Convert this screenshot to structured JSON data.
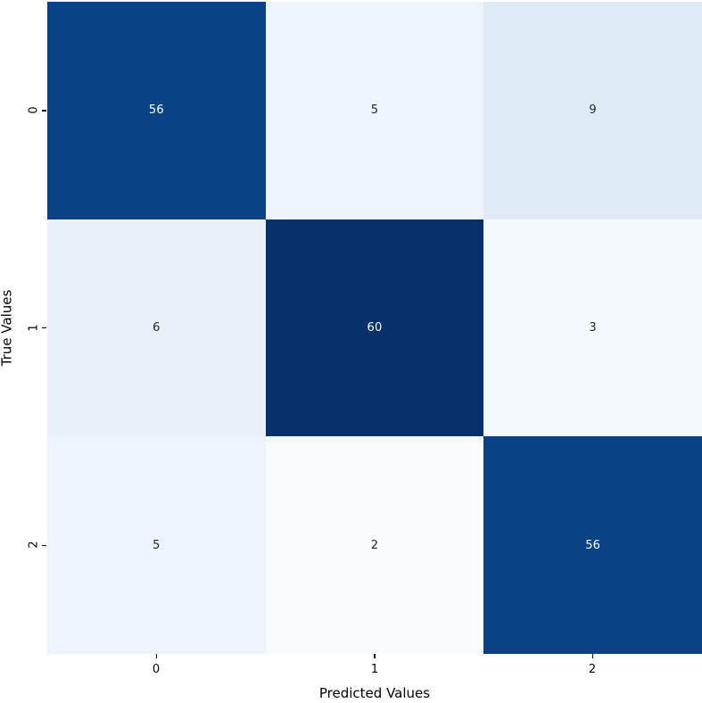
{
  "chart_data": {
    "type": "heatmap",
    "title": "",
    "xlabel": "Predicted Values",
    "ylabel": "True Values",
    "x_categories": [
      "0",
      "1",
      "2"
    ],
    "y_categories": [
      "0",
      "1",
      "2"
    ],
    "matrix": [
      [
        56,
        5,
        9
      ],
      [
        6,
        60,
        3
      ],
      [
        5,
        2,
        56
      ]
    ],
    "colormap": "Blues",
    "vmin": 2,
    "vmax": 60,
    "grid": false,
    "colorbar": false,
    "legend_position": "none",
    "cell_colors": [
      [
        "#0a4385",
        "#edf4fc",
        "#dfecf7"
      ],
      [
        "#e9f2fb",
        "#08306b",
        "#f4f9fe"
      ],
      [
        "#edf4fc",
        "#f7fbff",
        "#0a4385"
      ]
    ],
    "annot_colors": [
      [
        "#ffffff",
        "#262626",
        "#262626"
      ],
      [
        "#262626",
        "#ffffff",
        "#262626"
      ],
      [
        "#262626",
        "#262626",
        "#ffffff"
      ]
    ]
  }
}
